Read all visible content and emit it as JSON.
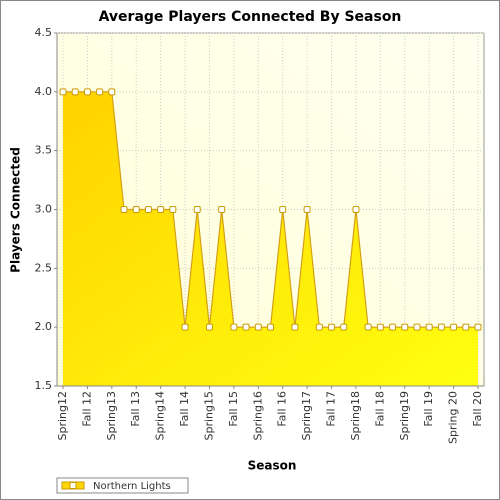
{
  "chart_data": {
    "type": "area",
    "title": "Average Players Connected By Season",
    "x_label": "Season",
    "y_label": "Players Connected",
    "categories": [
      "Spring12",
      null,
      "Fall 12",
      null,
      "Spring13",
      null,
      "Fall 13",
      null,
      "Spring14",
      null,
      "Fall 14",
      null,
      "Spring15",
      null,
      "Fall 15",
      null,
      "Spring16",
      null,
      "Fall 16",
      null,
      "Spring17",
      null,
      "Fall 17",
      null,
      "Spring18",
      null,
      "Fall 18",
      null,
      "Spring19",
      null,
      "Fall 19",
      null,
      "Spring 20",
      null,
      "Fall 20"
    ],
    "series": [
      {
        "name": "Northern Lights",
        "color": "#ffd700",
        "values": [
          4,
          4,
          4,
          4,
          4,
          3,
          3,
          3,
          3,
          3,
          2,
          3,
          2,
          3,
          2,
          2,
          2,
          2,
          3,
          2,
          3,
          2,
          2,
          2,
          3,
          2,
          2,
          2,
          2,
          2,
          2,
          2,
          2,
          2,
          2
        ]
      }
    ],
    "ylim": [
      1.5,
      4.5
    ],
    "yticks": [
      1.5,
      {
        "value": 2,
        "label": "2.0"
      },
      2.5,
      {
        "value": 3,
        "label": "3.0"
      },
      3.5,
      {
        "value": 4,
        "label": "4.0"
      },
      4.5
    ],
    "grid": true
  }
}
